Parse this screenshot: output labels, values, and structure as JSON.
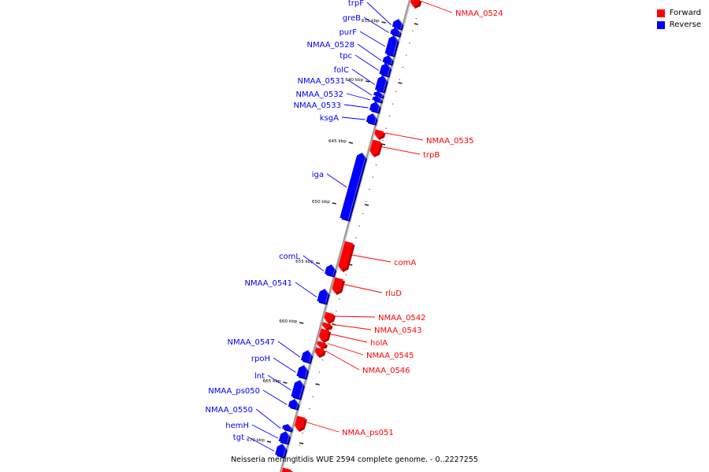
{
  "colors": {
    "forward": "#ff0000",
    "reverse": "#0000ff",
    "backbone": "#9a9a9a",
    "tick": "#222222"
  },
  "legend": [
    {
      "label": "Forward",
      "color": "#ff0000"
    },
    {
      "label": "Reverse",
      "color": "#0000ff"
    }
  ],
  "caption": "Neisseria meningitidis WUE 2594 complete genome. - 0..2227255",
  "scale_labels": [
    "635 kbp",
    "640 kbp",
    "645 kbp",
    "650 kbp",
    "655 kbp",
    "660 kbp",
    "665 kbp",
    "670 kbp"
  ],
  "genes": [
    {
      "name": "trpF",
      "strand": "reverse"
    },
    {
      "name": "greB",
      "strand": "reverse"
    },
    {
      "name": "purF",
      "strand": "reverse"
    },
    {
      "name": "NMAA_0528",
      "strand": "reverse"
    },
    {
      "name": "tpc",
      "strand": "reverse"
    },
    {
      "name": "folC",
      "strand": "reverse"
    },
    {
      "name": "NMAA_0531",
      "strand": "reverse"
    },
    {
      "name": "NMAA_0532",
      "strand": "reverse"
    },
    {
      "name": "NMAA_0533",
      "strand": "reverse"
    },
    {
      "name": "ksgA",
      "strand": "reverse"
    },
    {
      "name": "iga",
      "strand": "reverse"
    },
    {
      "name": "comL",
      "strand": "reverse"
    },
    {
      "name": "NMAA_0541",
      "strand": "reverse"
    },
    {
      "name": "NMAA_0547",
      "strand": "reverse"
    },
    {
      "name": "rpoH",
      "strand": "reverse"
    },
    {
      "name": "lnt",
      "strand": "reverse"
    },
    {
      "name": "NMAA_ps050",
      "strand": "reverse"
    },
    {
      "name": "NMAA_0550",
      "strand": "reverse"
    },
    {
      "name": "hemH",
      "strand": "reverse"
    },
    {
      "name": "tgt",
      "strand": "reverse"
    },
    {
      "name": "NMAA_0524",
      "strand": "forward"
    },
    {
      "name": "NMAA_0535",
      "strand": "forward"
    },
    {
      "name": "trpB",
      "strand": "forward"
    },
    {
      "name": "comA",
      "strand": "forward"
    },
    {
      "name": "rluD",
      "strand": "forward"
    },
    {
      "name": "NMAA_0542",
      "strand": "forward"
    },
    {
      "name": "NMAA_0543",
      "strand": "forward"
    },
    {
      "name": "holA",
      "strand": "forward"
    },
    {
      "name": "NMAA_0545",
      "strand": "forward"
    },
    {
      "name": "NMAA_0546",
      "strand": "forward"
    },
    {
      "name": "NMAA_ps051",
      "strand": "forward"
    }
  ]
}
